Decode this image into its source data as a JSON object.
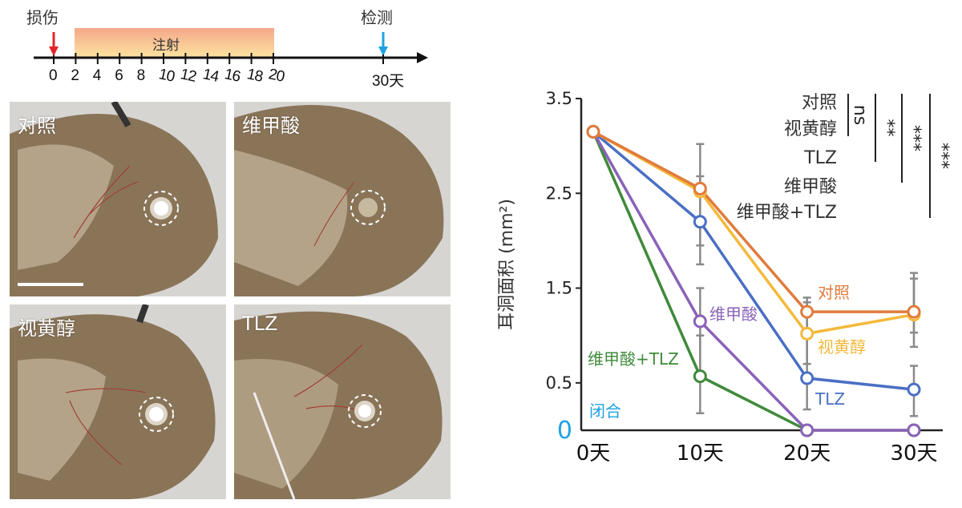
{
  "timeline": {
    "injury_label": "损伤",
    "detect_label": "检测",
    "injection_label": "注射",
    "ticks": [
      "0",
      "2",
      "4",
      "6",
      "8",
      "10",
      "12",
      "14",
      "16",
      "18",
      "20"
    ],
    "end_tick": "30天",
    "colors": {
      "injury_arrow": "#e0262b",
      "detect_arrow": "#1fa3e0",
      "band_top": "#f4a88a",
      "band_bottom": "#fde3a0"
    }
  },
  "photos": [
    {
      "label": "对照",
      "state": "open-hole"
    },
    {
      "label": "维甲酸",
      "state": "closed"
    },
    {
      "label": "视黄醇",
      "state": "open-hole"
    },
    {
      "label": "TLZ",
      "state": "open-hole"
    }
  ],
  "chart_data": {
    "type": "line",
    "title": "",
    "xlabel": "",
    "ylabel": "耳洞面积 (mm²)",
    "x": [
      "0天",
      "10天",
      "20天",
      "30天"
    ],
    "x_values": [
      0,
      10,
      20,
      30
    ],
    "y_ticks": [
      "0",
      "0.5",
      "1.5",
      "2.5",
      "3.5"
    ],
    "y_tick_values": [
      0,
      0.5,
      1.5,
      2.5,
      3.5
    ],
    "ylim": [
      0,
      3.5
    ],
    "zero_label_color": "#1fa3e0",
    "closed_label": "闭合",
    "series": [
      {
        "name": "对照",
        "color": "#e07b3c",
        "values": [
          3.15,
          2.55,
          1.25,
          1.25
        ]
      },
      {
        "name": "视黄醇",
        "color": "#f4b93b",
        "values": [
          3.15,
          2.52,
          1.02,
          1.22
        ]
      },
      {
        "name": "TLZ",
        "color": "#4a6fc4",
        "values": [
          3.15,
          2.2,
          0.55,
          0.43
        ]
      },
      {
        "name": "维甲酸",
        "color": "#8a62b8",
        "values": [
          3.15,
          1.15,
          0,
          0
        ]
      },
      {
        "name": "维甲酸+TLZ",
        "color": "#3f8a3a",
        "values": [
          3.15,
          0.57,
          0,
          0
        ]
      }
    ],
    "error_bars": [
      {
        "x": 10,
        "low": 1.75,
        "high": 3.02
      },
      {
        "x": 10,
        "low": 1.95,
        "high": 2.68
      },
      {
        "x": 10,
        "low": 0.18,
        "high": 1.5
      },
      {
        "x": 10,
        "low": 0.6,
        "high": 1.0
      },
      {
        "x": 20,
        "low": 0.22,
        "high": 1.4
      },
      {
        "x": 20,
        "low": 0.7,
        "high": 1.35
      },
      {
        "x": 30,
        "low": 0.88,
        "high": 1.66
      },
      {
        "x": 30,
        "low": 0.15,
        "high": 0.68
      },
      {
        "x": 30,
        "low": 1.03,
        "high": 1.6
      }
    ],
    "legend": [
      "对照",
      "视黄醇",
      "TLZ",
      "维甲酸",
      "维甲酸+TLZ"
    ],
    "legend_placement": "top-right",
    "significance": [
      {
        "label": "ns"
      },
      {
        "label": "**"
      },
      {
        "label": "***"
      },
      {
        "label": "***"
      }
    ],
    "annotations": [
      {
        "text": "对照",
        "series": "对照"
      },
      {
        "text": "视黄醇",
        "series": "视黄醇"
      },
      {
        "text": "TLZ",
        "series": "TLZ"
      },
      {
        "text": "维甲酸",
        "series": "维甲酸"
      },
      {
        "text": "维甲酸+TLZ",
        "series": "维甲酸+TLZ"
      }
    ],
    "grid": false
  }
}
